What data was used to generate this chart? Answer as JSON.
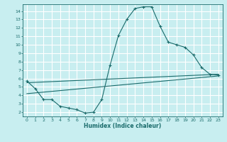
{
  "title": "",
  "xlabel": "Humidex (Indice chaleur)",
  "ylabel": "",
  "xlim": [
    -0.5,
    23.5
  ],
  "ylim": [
    1.5,
    14.8
  ],
  "xticks": [
    0,
    1,
    2,
    3,
    4,
    5,
    6,
    7,
    8,
    9,
    10,
    11,
    12,
    13,
    14,
    15,
    16,
    17,
    18,
    19,
    20,
    21,
    22,
    23
  ],
  "yticks": [
    2,
    3,
    4,
    5,
    6,
    7,
    8,
    9,
    10,
    11,
    12,
    13,
    14
  ],
  "bg_color": "#c8eef0",
  "line_color": "#1a6b6b",
  "grid_color": "#ffffff",
  "line1_x": [
    0,
    1,
    2,
    3,
    4,
    5,
    6,
    7,
    8,
    9,
    10,
    11,
    12,
    13,
    14,
    15,
    16,
    17,
    18,
    19,
    20,
    21,
    22,
    23
  ],
  "line1_y": [
    5.7,
    4.8,
    3.5,
    3.5,
    2.7,
    2.5,
    2.3,
    1.9,
    2.0,
    3.5,
    7.6,
    11.1,
    13.0,
    14.3,
    14.5,
    14.5,
    12.2,
    10.3,
    10.0,
    9.7,
    8.8,
    7.3,
    6.5,
    6.4
  ],
  "line2_x": [
    0,
    23
  ],
  "line2_y": [
    5.5,
    6.5
  ],
  "line3_x": [
    0,
    23
  ],
  "line3_y": [
    4.2,
    6.3
  ],
  "marker": "+"
}
